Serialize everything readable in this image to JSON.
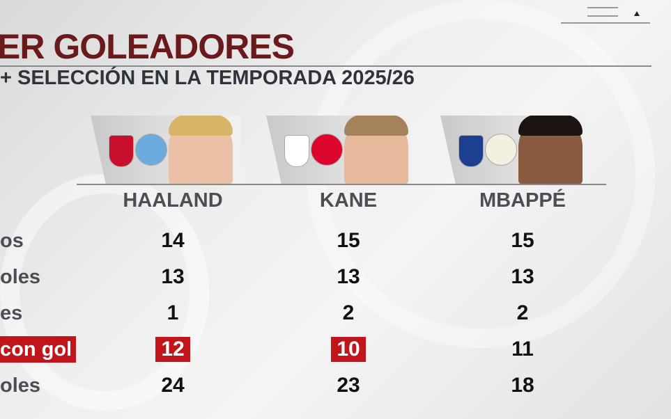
{
  "header": {
    "title": "ER GOLEADORES",
    "subtitle": "+ SELECCIÓN EN LA TEMPORADA 2025/26"
  },
  "accent_color": "#c0161b",
  "title_color": "#6b1a1c",
  "players": [
    {
      "name": "HAALAND",
      "badges": [
        "norway-flag-badge",
        "manchester-city-crest"
      ]
    },
    {
      "name": "KANE",
      "badges": [
        "england-crest",
        "bayern-munich-crest"
      ]
    },
    {
      "name": "MBAPPÉ",
      "badges": [
        "france-crest",
        "real-madrid-crest"
      ]
    }
  ],
  "rows": [
    {
      "label": "os",
      "values": [
        "14",
        "15",
        "15"
      ],
      "highlight": [
        false,
        false,
        false
      ]
    },
    {
      "label": "oles",
      "values": [
        "13",
        "13",
        "13"
      ],
      "highlight": [
        false,
        false,
        false
      ]
    },
    {
      "label": "es",
      "values": [
        "1",
        "2",
        "2"
      ],
      "highlight": [
        false,
        false,
        false
      ]
    },
    {
      "label": "con gol",
      "values": [
        "12",
        "10",
        "11"
      ],
      "highlight": [
        true,
        true,
        false
      ],
      "label_highlight": true
    },
    {
      "label": "oles",
      "values": [
        "24",
        "23",
        "18"
      ],
      "highlight": [
        false,
        false,
        false
      ]
    }
  ]
}
